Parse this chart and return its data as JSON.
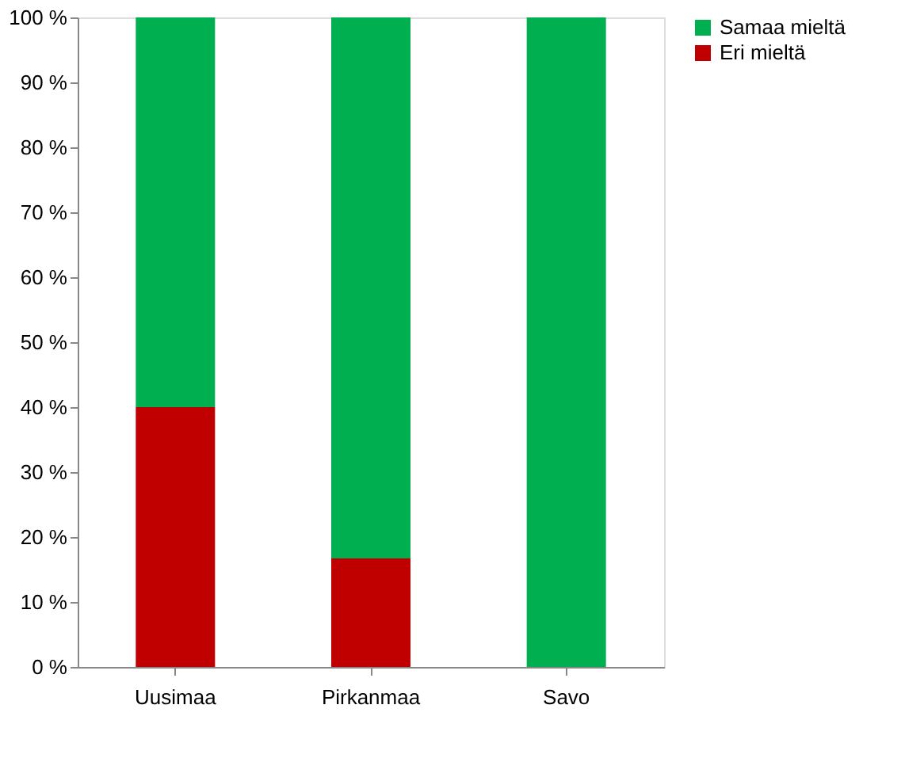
{
  "chart_data": {
    "type": "bar",
    "stacked": true,
    "categories": [
      "Uusimaa",
      "Pirkanmaa",
      "Savo"
    ],
    "series": [
      {
        "name": "Eri mieltä",
        "color": "#c00000",
        "values": [
          40,
          16.7,
          0
        ]
      },
      {
        "name": "Samaa mieltä",
        "color": "#00b050",
        "values": [
          60,
          83.3,
          100
        ]
      }
    ],
    "ylim": [
      0,
      100
    ],
    "yticks": [
      {
        "value": 0,
        "label": "0 %"
      },
      {
        "value": 10,
        "label": "10 %"
      },
      {
        "value": 20,
        "label": "20 %"
      },
      {
        "value": 30,
        "label": "30 %"
      },
      {
        "value": 40,
        "label": "40 %"
      },
      {
        "value": 50,
        "label": "50 %"
      },
      {
        "value": 60,
        "label": "60 %"
      },
      {
        "value": 70,
        "label": "70 %"
      },
      {
        "value": 80,
        "label": "80 %"
      },
      {
        "value": 90,
        "label": "90 %"
      },
      {
        "value": 100,
        "label": "100 %"
      }
    ],
    "grid": false,
    "legend": "right"
  }
}
